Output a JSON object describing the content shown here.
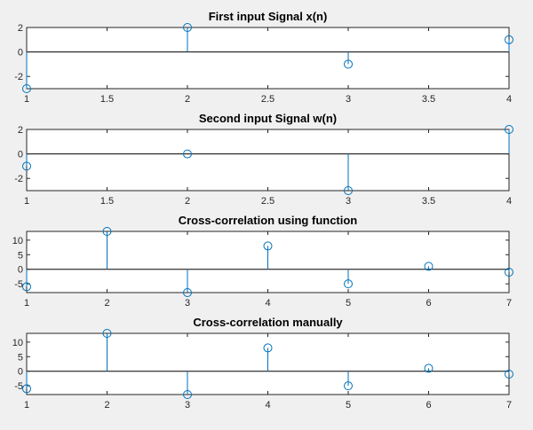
{
  "colors": {
    "series": "#0072bd",
    "axes": "#262626",
    "background": "#f0f0f0"
  },
  "chart_data": [
    {
      "type": "stem",
      "title": "First input Signal x(n)",
      "x": [
        1,
        2,
        3,
        4
      ],
      "y": [
        -3,
        2,
        -1,
        1
      ],
      "xlim": [
        1,
        4
      ],
      "ylim": [
        -3,
        2
      ],
      "xticks": [
        "1",
        "1.5",
        "2",
        "2.5",
        "3",
        "3.5",
        "4"
      ],
      "yticks": [
        "2",
        "0",
        "-2"
      ]
    },
    {
      "type": "stem",
      "title": "Second input Signal w(n)",
      "x": [
        1,
        2,
        3,
        4
      ],
      "y": [
        -1,
        0,
        -3,
        2
      ],
      "xlim": [
        1,
        4
      ],
      "ylim": [
        -3,
        2
      ],
      "xticks": [
        "1",
        "1.5",
        "2",
        "2.5",
        "3",
        "3.5",
        "4"
      ],
      "yticks": [
        "2",
        "0",
        "-2"
      ]
    },
    {
      "type": "stem",
      "title": "Cross-correlation using function",
      "x": [
        1,
        2,
        3,
        4,
        5,
        6,
        7
      ],
      "y": [
        -6,
        13,
        -8,
        8,
        -5,
        1,
        -1
      ],
      "xlim": [
        1,
        7
      ],
      "ylim": [
        -8,
        13
      ],
      "xticks": [
        "1",
        "2",
        "3",
        "4",
        "5",
        "6",
        "7"
      ],
      "yticks": [
        "10",
        "5",
        "0",
        "-5"
      ]
    },
    {
      "type": "stem",
      "title": "Cross-correlation manually",
      "x": [
        1,
        2,
        3,
        4,
        5,
        6,
        7
      ],
      "y": [
        -6,
        13,
        -8,
        8,
        -5,
        1,
        -1
      ],
      "xlim": [
        1,
        7
      ],
      "ylim": [
        -8,
        13
      ],
      "xticks": [
        "1",
        "2",
        "3",
        "4",
        "5",
        "6",
        "7"
      ],
      "yticks": [
        "10",
        "5",
        "0",
        "-5"
      ]
    }
  ]
}
